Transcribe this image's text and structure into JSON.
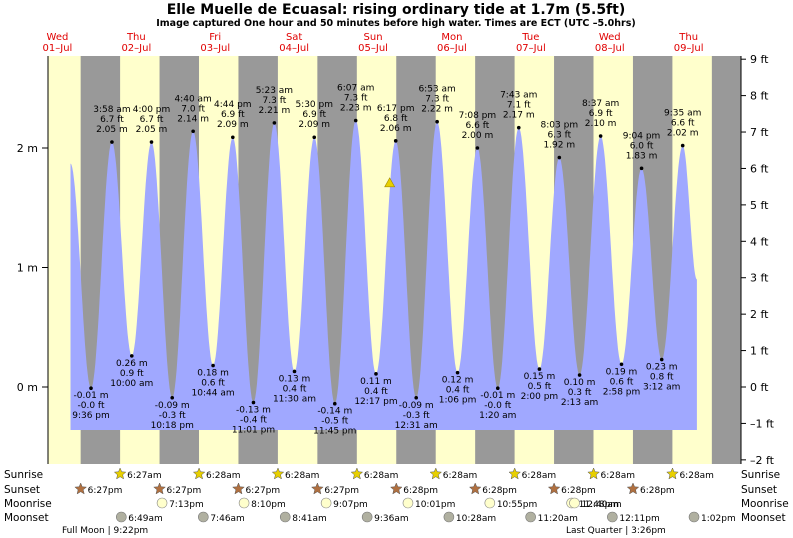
{
  "title": "Elle Muelle de Ecuasal: rising  ordinary tide at 1.7m (5.5ft)",
  "subtitle": "Image captured One hour and 50 minutes before high water. Times are ECT (UTC –5.0hrs)",
  "days": [
    {
      "dow": "Wed",
      "date": "01–Jul"
    },
    {
      "dow": "Thu",
      "date": "02–Jul"
    },
    {
      "dow": "Fri",
      "date": "03–Jul"
    },
    {
      "dow": "Sat",
      "date": "04–Jul"
    },
    {
      "dow": "Sun",
      "date": "05–Jul"
    },
    {
      "dow": "Mon",
      "date": "06–Jul"
    },
    {
      "dow": "Tue",
      "date": "07–Jul"
    },
    {
      "dow": "Wed",
      "date": "08–Jul"
    },
    {
      "dow": "Thu",
      "date": "09–Jul"
    }
  ],
  "chart_data": {
    "type": "area",
    "title": "Elle Muelle de Ecuasal: rising  ordinary tide at 1.7m (5.5ft)",
    "x_unit": "days from 01-Jul 00:00 ECT",
    "y_left_ticks": [
      "0 m",
      "1 m",
      "2 m"
    ],
    "y_right_ticks": [
      "–2 ft",
      "–1 ft",
      "0 ft",
      "1 ft",
      "2 ft",
      "3 ft",
      "4 ft",
      "5 ft",
      "6 ft",
      "7 ft",
      "8 ft",
      "9 ft"
    ],
    "ylim_m": [
      -0.36,
      2.7
    ],
    "current": {
      "label": "rising ordinary tide at 1.7m (5.5ft)",
      "height_m": 1.7
    },
    "night_shading": true,
    "extremes": [
      {
        "kind": "low",
        "time": "9:36 pm",
        "m": "-0.01 m",
        "ft": "-0.0 ft",
        "h": -0.01
      },
      {
        "kind": "high",
        "time": "3:58 am",
        "m": "2.05 m",
        "ft": "6.7 ft",
        "h": 2.05
      },
      {
        "kind": "low",
        "time": "10:00 am",
        "m": "0.26 m",
        "ft": "0.9 ft",
        "h": 0.26
      },
      {
        "kind": "high",
        "time": "4:00 pm",
        "m": "2.05 m",
        "ft": "6.7 ft",
        "h": 2.05
      },
      {
        "kind": "low",
        "time": "10:18 pm",
        "m": "-0.09 m",
        "ft": "-0.3 ft",
        "h": -0.09
      },
      {
        "kind": "high",
        "time": "4:40 am",
        "m": "2.14 m",
        "ft": "7.0 ft",
        "h": 2.14
      },
      {
        "kind": "low",
        "time": "10:44 am",
        "m": "0.18 m",
        "ft": "0.6 ft",
        "h": 0.18
      },
      {
        "kind": "high",
        "time": "4:44 pm",
        "m": "2.09 m",
        "ft": "6.9 ft",
        "h": 2.09
      },
      {
        "kind": "low",
        "time": "11:01 pm",
        "m": "-0.13 m",
        "ft": "-0.4 ft",
        "h": -0.13
      },
      {
        "kind": "high",
        "time": "5:23 am",
        "m": "2.21 m",
        "ft": "7.3 ft",
        "h": 2.21
      },
      {
        "kind": "low",
        "time": "11:30 am",
        "m": "0.13 m",
        "ft": "0.4 ft",
        "h": 0.13
      },
      {
        "kind": "high",
        "time": "5:30 pm",
        "m": "2.09 m",
        "ft": "6.9 ft",
        "h": 2.09
      },
      {
        "kind": "low",
        "time": "11:45 pm",
        "m": "-0.14 m",
        "ft": "-0.5 ft",
        "h": -0.14
      },
      {
        "kind": "high",
        "time": "6:07 am",
        "m": "2.23 m",
        "ft": "7.3 ft",
        "h": 2.23
      },
      {
        "kind": "low",
        "time": "12:17 pm",
        "m": "0.11 m",
        "ft": "0.4 ft",
        "h": 0.11
      },
      {
        "kind": "high",
        "time": "6:17 pm",
        "m": "2.06 m",
        "ft": "6.8 ft",
        "h": 2.06
      },
      {
        "kind": "low",
        "time": "12:31 am",
        "m": "-0.09 m",
        "ft": "-0.3 ft",
        "h": -0.09
      },
      {
        "kind": "high",
        "time": "6:53 am",
        "m": "2.22 m",
        "ft": "7.3 ft",
        "h": 2.22
      },
      {
        "kind": "low",
        "time": "1:06 pm",
        "m": "0.12 m",
        "ft": "0.4 ft",
        "h": 0.12
      },
      {
        "kind": "high",
        "time": "7:08 pm",
        "m": "2.00 m",
        "ft": "6.6 ft",
        "h": 2.0
      },
      {
        "kind": "low",
        "time": "1:20 am",
        "m": "-0.01 m",
        "ft": "-0.0 ft",
        "h": -0.01
      },
      {
        "kind": "high",
        "time": "7:43 am",
        "m": "2.17 m",
        "ft": "7.1 ft",
        "h": 2.17
      },
      {
        "kind": "low",
        "time": "2:00 pm",
        "m": "0.15 m",
        "ft": "0.5 ft",
        "h": 0.15
      },
      {
        "kind": "high",
        "time": "8:03 pm",
        "m": "1.92 m",
        "ft": "6.3 ft",
        "h": 1.92
      },
      {
        "kind": "low",
        "time": "2:13 am",
        "m": "0.10 m",
        "ft": "0.3 ft",
        "h": 0.1
      },
      {
        "kind": "high",
        "time": "8:37 am",
        "m": "2.10 m",
        "ft": "6.9 ft",
        "h": 2.1
      },
      {
        "kind": "low",
        "time": "2:58 pm",
        "m": "0.19 m",
        "ft": "0.6 ft",
        "h": 0.19
      },
      {
        "kind": "high",
        "time": "9:04 pm",
        "m": "1.83 m",
        "ft": "6.0 ft",
        "h": 1.83
      },
      {
        "kind": "low",
        "time": "3:12 am",
        "m": "0.23 m",
        "ft": "0.8 ft",
        "h": 0.23
      },
      {
        "kind": "high",
        "time": "9:35 am",
        "m": "2.02 m",
        "ft": "6.6 ft",
        "h": 2.02
      }
    ]
  },
  "rows": {
    "sunrise": "Sunrise",
    "sunset": "Sunset",
    "moonrise": "Moonrise",
    "moonset": "Moonset"
  },
  "sunrise_times": [
    "6:27am",
    "6:28am",
    "6:28am",
    "6:28am",
    "6:28am",
    "6:28am",
    "6:28am",
    "6:28am"
  ],
  "sunset_times": [
    "6:27pm",
    "6:27pm",
    "6:27pm",
    "6:27pm",
    "6:28pm",
    "6:28pm",
    "6:28pm",
    "6:28pm"
  ],
  "moonrise_times": [
    "7:13pm",
    "8:10pm",
    "9:07pm",
    "10:01pm",
    "10:55pm",
    "11:48pm",
    "12:40am"
  ],
  "moonset_times": [
    "6:49am",
    "7:46am",
    "8:41am",
    "9:36am",
    "10:28am",
    "11:20am",
    "12:11pm",
    "1:02pm"
  ],
  "moon_phases": [
    {
      "label": "Full Moon | 9:22pm"
    },
    {
      "label": "Last Quarter | 3:26pm"
    }
  ],
  "colors": {
    "day_bg": "#ffffcc",
    "night_bg": "#999999",
    "water": "#a0a8ff",
    "day_label": "#e00000",
    "sun": "#e8d000",
    "sunset_star": "#b07040",
    "moonrise": "#ffffcc",
    "moonset": "#b0b0a0",
    "marker": "#e8d000"
  }
}
